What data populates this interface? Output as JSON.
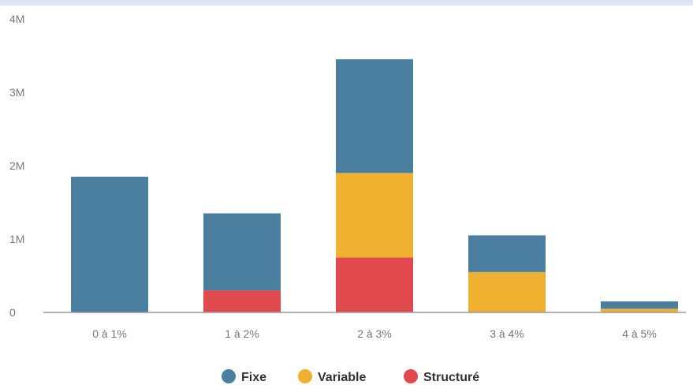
{
  "chart_data": {
    "type": "bar",
    "stacked": true,
    "categories": [
      "0 à 1%",
      "1 à 2%",
      "2 à 3%",
      "3 à 4%",
      "4 à 5%"
    ],
    "series": [
      {
        "name": "Structuré",
        "color": "#e04a4f",
        "values": [
          0,
          0.3,
          0.75,
          0,
          0
        ]
      },
      {
        "name": "Variable",
        "color": "#f0b030",
        "values": [
          0,
          0,
          1.15,
          0.55,
          0.05
        ]
      },
      {
        "name": "Fixe",
        "color": "#4a7fa0",
        "values": [
          1.85,
          1.05,
          1.55,
          0.5,
          0.1
        ]
      }
    ],
    "legend_order": [
      "Fixe",
      "Variable",
      "Structuré"
    ],
    "yticks": [
      {
        "value": 0,
        "label": "0"
      },
      {
        "value": 1,
        "label": "1M"
      },
      {
        "value": 2,
        "label": "2M"
      },
      {
        "value": 3,
        "label": "3M"
      },
      {
        "value": 4,
        "label": "4M"
      }
    ],
    "ylim": [
      0,
      4
    ],
    "grid": false,
    "legend_position": "bottom",
    "title": "",
    "xlabel": "",
    "ylabel": ""
  }
}
